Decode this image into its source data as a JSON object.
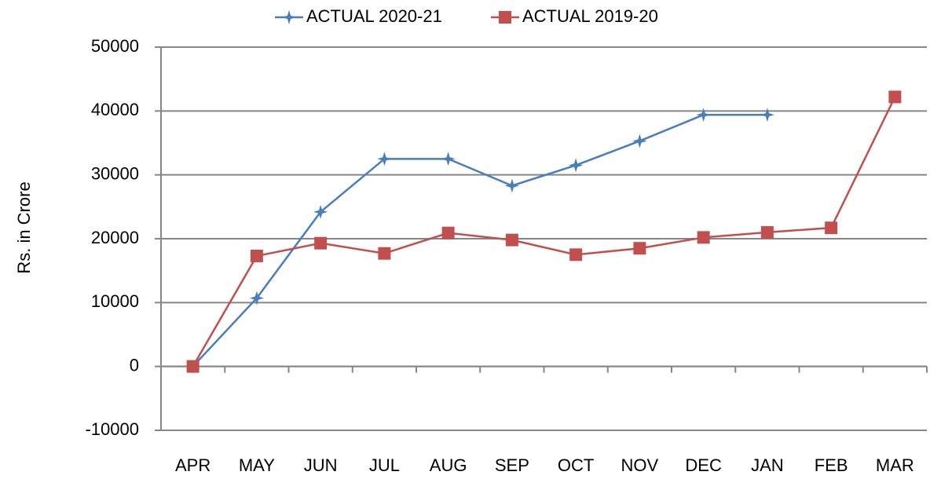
{
  "chart_data": {
    "type": "line",
    "y_label": "Rs. in Crore",
    "categories": [
      "APR",
      "MAY",
      "JUN",
      "JUL",
      "AUG",
      "SEP",
      "OCT",
      "NOV",
      "DEC",
      "JAN",
      "FEB",
      "MAR"
    ],
    "series": [
      {
        "name": "ACTUAL 2020-21",
        "color": "#4a7ebb",
        "marker": "star",
        "values": [
          0,
          10700,
          24200,
          32500,
          32500,
          28300,
          31500,
          35300,
          39400,
          39400,
          null,
          null
        ]
      },
      {
        "name": "ACTUAL 2019-20",
        "color": "#c0504d",
        "marker": "square",
        "values": [
          0,
          17300,
          19300,
          17700,
          20900,
          19800,
          17500,
          18500,
          20200,
          21000,
          21700,
          42200
        ]
      }
    ],
    "ylim": [
      -10000,
      50000
    ],
    "yticks": [
      -10000,
      0,
      10000,
      20000,
      30000,
      40000,
      50000
    ],
    "grid": true,
    "legend": "top"
  }
}
